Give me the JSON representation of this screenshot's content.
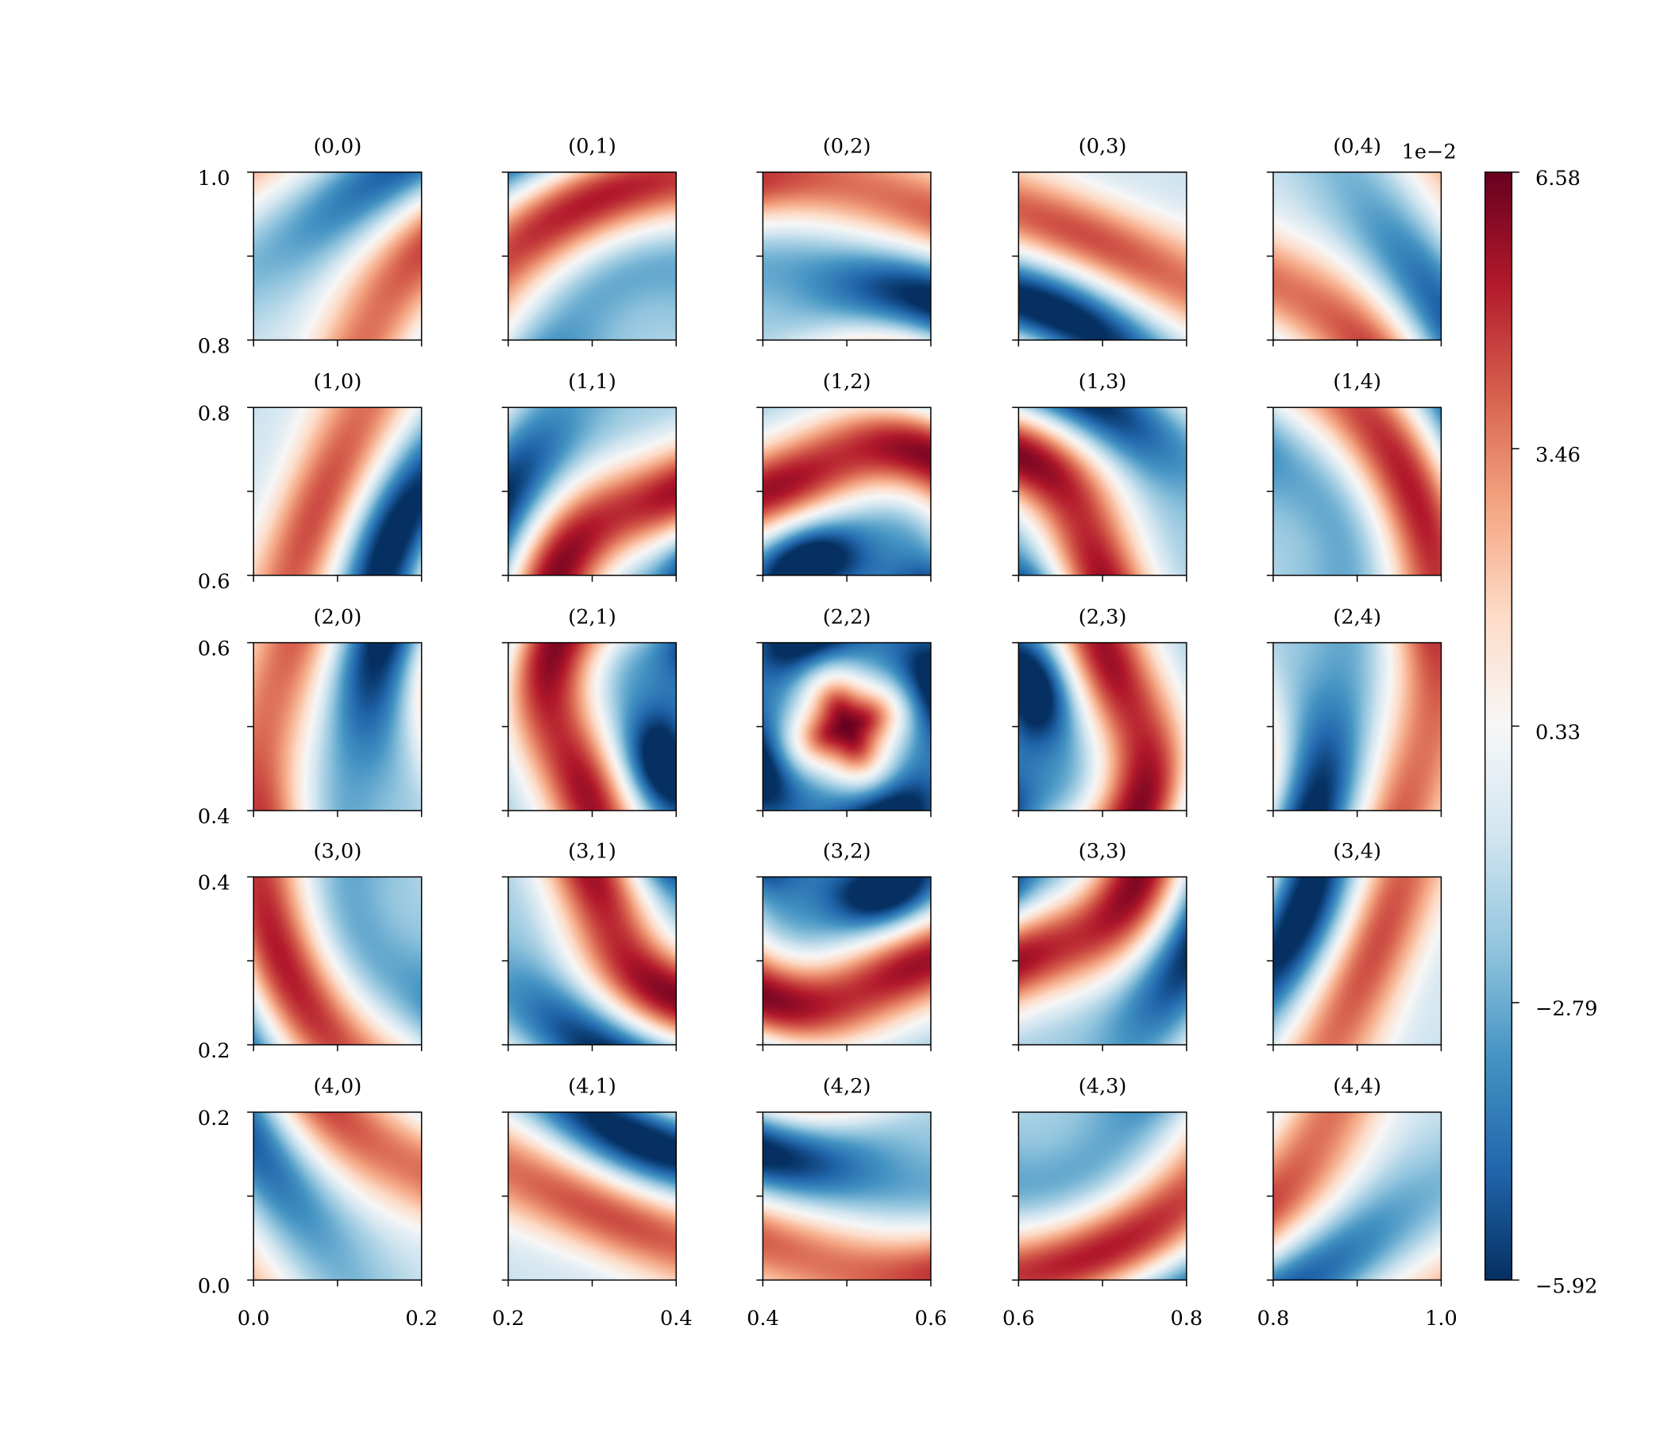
{
  "chart_data": {
    "type": "heatmap",
    "layout": {
      "rows": 5,
      "cols": 5
    },
    "panels": [
      {
        "title": "(0,0)",
        "row": 0,
        "col": 0,
        "x_range": [
          0.0,
          0.2
        ],
        "y_range": [
          0.8,
          1.0
        ]
      },
      {
        "title": "(0,1)",
        "row": 0,
        "col": 1,
        "x_range": [
          0.2,
          0.4
        ],
        "y_range": [
          0.8,
          1.0
        ]
      },
      {
        "title": "(0,2)",
        "row": 0,
        "col": 2,
        "x_range": [
          0.4,
          0.6
        ],
        "y_range": [
          0.8,
          1.0
        ]
      },
      {
        "title": "(0,3)",
        "row": 0,
        "col": 3,
        "x_range": [
          0.6,
          0.8
        ],
        "y_range": [
          0.8,
          1.0
        ]
      },
      {
        "title": "(0,4)",
        "row": 0,
        "col": 4,
        "x_range": [
          0.8,
          1.0
        ],
        "y_range": [
          0.8,
          1.0
        ]
      },
      {
        "title": "(1,0)",
        "row": 1,
        "col": 0,
        "x_range": [
          0.0,
          0.2
        ],
        "y_range": [
          0.6,
          0.8
        ]
      },
      {
        "title": "(1,1)",
        "row": 1,
        "col": 1,
        "x_range": [
          0.2,
          0.4
        ],
        "y_range": [
          0.6,
          0.8
        ]
      },
      {
        "title": "(1,2)",
        "row": 1,
        "col": 2,
        "x_range": [
          0.4,
          0.6
        ],
        "y_range": [
          0.6,
          0.8
        ]
      },
      {
        "title": "(1,3)",
        "row": 1,
        "col": 3,
        "x_range": [
          0.6,
          0.8
        ],
        "y_range": [
          0.6,
          0.8
        ]
      },
      {
        "title": "(1,4)",
        "row": 1,
        "col": 4,
        "x_range": [
          0.8,
          1.0
        ],
        "y_range": [
          0.6,
          0.8
        ]
      },
      {
        "title": "(2,0)",
        "row": 2,
        "col": 0,
        "x_range": [
          0.0,
          0.2
        ],
        "y_range": [
          0.4,
          0.6
        ]
      },
      {
        "title": "(2,1)",
        "row": 2,
        "col": 1,
        "x_range": [
          0.2,
          0.4
        ],
        "y_range": [
          0.4,
          0.6
        ]
      },
      {
        "title": "(2,2)",
        "row": 2,
        "col": 2,
        "x_range": [
          0.4,
          0.6
        ],
        "y_range": [
          0.4,
          0.6
        ]
      },
      {
        "title": "(2,3)",
        "row": 2,
        "col": 3,
        "x_range": [
          0.6,
          0.8
        ],
        "y_range": [
          0.4,
          0.6
        ]
      },
      {
        "title": "(2,4)",
        "row": 2,
        "col": 4,
        "x_range": [
          0.8,
          1.0
        ],
        "y_range": [
          0.4,
          0.6
        ]
      },
      {
        "title": "(3,0)",
        "row": 3,
        "col": 0,
        "x_range": [
          0.0,
          0.2
        ],
        "y_range": [
          0.2,
          0.4
        ]
      },
      {
        "title": "(3,1)",
        "row": 3,
        "col": 1,
        "x_range": [
          0.2,
          0.4
        ],
        "y_range": [
          0.2,
          0.4
        ]
      },
      {
        "title": "(3,2)",
        "row": 3,
        "col": 2,
        "x_range": [
          0.4,
          0.6
        ],
        "y_range": [
          0.2,
          0.4
        ]
      },
      {
        "title": "(3,3)",
        "row": 3,
        "col": 3,
        "x_range": [
          0.6,
          0.8
        ],
        "y_range": [
          0.2,
          0.4
        ]
      },
      {
        "title": "(3,4)",
        "row": 3,
        "col": 4,
        "x_range": [
          0.8,
          1.0
        ],
        "y_range": [
          0.2,
          0.4
        ]
      },
      {
        "title": "(4,0)",
        "row": 4,
        "col": 0,
        "x_range": [
          0.0,
          0.2
        ],
        "y_range": [
          0.0,
          0.2
        ]
      },
      {
        "title": "(4,1)",
        "row": 4,
        "col": 1,
        "x_range": [
          0.2,
          0.4
        ],
        "y_range": [
          0.0,
          0.2
        ]
      },
      {
        "title": "(4,2)",
        "row": 4,
        "col": 2,
        "x_range": [
          0.4,
          0.6
        ],
        "y_range": [
          0.0,
          0.2
        ]
      },
      {
        "title": "(4,3)",
        "row": 4,
        "col": 3,
        "x_range": [
          0.6,
          0.8
        ],
        "y_range": [
          0.0,
          0.2
        ]
      },
      {
        "title": "(4,4)",
        "row": 4,
        "col": 4,
        "x_range": [
          0.8,
          1.0
        ],
        "y_range": [
          0.0,
          0.2
        ]
      }
    ],
    "y_tick_labels": [
      [
        "1.0",
        "0.8"
      ],
      [
        "0.8",
        "0.6"
      ],
      [
        "0.6",
        "0.4"
      ],
      [
        "0.4",
        "0.2"
      ],
      [
        "0.2",
        "0.0"
      ]
    ],
    "x_tick_labels": [
      [
        "0.0",
        "0.2"
      ],
      [
        "0.2",
        "0.4"
      ],
      [
        "0.4",
        "0.6"
      ],
      [
        "0.6",
        "0.8"
      ],
      [
        "0.8",
        "1.0"
      ]
    ],
    "colorbar": {
      "colormap": "RdBu_r",
      "vmin": -5.92,
      "vmax": 6.58,
      "offset_label": "1e−2",
      "ticks": [
        6.58,
        3.46,
        0.33,
        -2.79,
        -5.92
      ],
      "tick_labels": [
        "6.58",
        "3.46",
        "0.33",
        "−2.79",
        "−5.92"
      ]
    },
    "colors": {
      "min": "#053061",
      "low": "#2166ac",
      "mid_low": "#92c5de",
      "mid": "#f7f7f7",
      "mid_high": "#f4a582",
      "high": "#b2182b",
      "max": "#67001f"
    },
    "grid": false
  }
}
